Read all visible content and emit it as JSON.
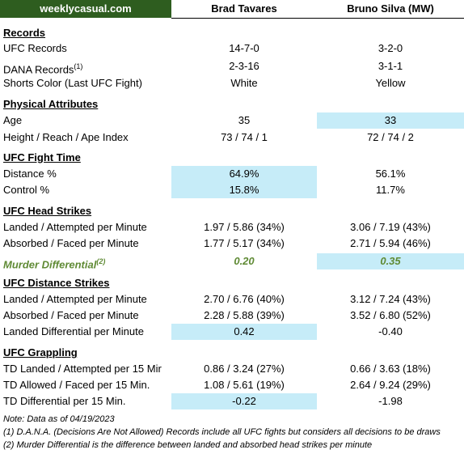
{
  "header": {
    "brand": "weeklycasual.com",
    "fighter1": "Brad Tavares",
    "fighter2": "Bruno Silva (MW)"
  },
  "records": {
    "title": "Records",
    "ufc_label": "UFC Records",
    "ufc_1": "14-7-0",
    "ufc_2": "3-2-0",
    "dana_label": "DANA Records",
    "dana_sup": "(1)",
    "dana_1": "2-3-16",
    "dana_2": "3-1-1",
    "shorts_label": "Shorts Color (Last UFC Fight)",
    "shorts_1": "White",
    "shorts_2": "Yellow"
  },
  "physical": {
    "title": "Physical Attributes",
    "age_label": "Age",
    "age_1": "35",
    "age_2": "33",
    "hra_label": "Height / Reach / Ape Index",
    "hra_1": "73 / 74 / 1",
    "hra_2": "72 / 74 / 2"
  },
  "fight_time": {
    "title": "UFC Fight Time",
    "distance_label": "Distance %",
    "distance_1": "64.9%",
    "distance_2": "56.1%",
    "control_label": "Control %",
    "control_1": "15.8%",
    "control_2": "11.7%"
  },
  "head": {
    "title": "UFC Head Strikes",
    "landed_label": "Landed / Attempted per Minute",
    "landed_1": "1.97 / 5.86 (34%)",
    "landed_2": "3.06 / 7.19 (43%)",
    "absorbed_label": "Absorbed / Faced per Minute",
    "absorbed_1": "1.77 / 5.17 (34%)",
    "absorbed_2": "2.71 / 5.94 (46%)",
    "murder_label": "Murder Differential",
    "murder_sup": "(2)",
    "murder_1": "0.20",
    "murder_2": "0.35"
  },
  "distance": {
    "title": "UFC Distance Strikes",
    "landed_label": "Landed / Attempted per Minute",
    "landed_1": "2.70 / 6.76 (40%)",
    "landed_2": "3.12 / 7.24 (43%)",
    "absorbed_label": "Absorbed / Faced per Minute",
    "absorbed_1": "2.28 / 5.88 (39%)",
    "absorbed_2": "3.52 / 6.80 (52%)",
    "diff_label": "Landed Differential per Minute",
    "diff_1": "0.42",
    "diff_2": "-0.40"
  },
  "grappling": {
    "title": "UFC Grappling",
    "td_label": "TD Landed / Attempted per 15 Mir",
    "td_1": "0.86 / 3.24 (27%)",
    "td_2": "0.66 / 3.63 (18%)",
    "tda_label": "TD Allowed / Faced per 15 Min.",
    "tda_1": "1.08 / 5.61 (19%)",
    "tda_2": "2.64 / 9.24 (29%)",
    "tdd_label": "TD Differential per 15 Min.",
    "tdd_1": "-0.22",
    "tdd_2": "-1.98"
  },
  "notes": {
    "n0": "Note: Data as of 04/19/2023",
    "n1": "(1) D.A.N.A. (Decisions Are Not Allowed) Records include all UFC fights but considers all decisions to be draws",
    "n2": "(2) Murder Differential is the difference between landed and absorbed head strikes per minute"
  },
  "colors": {
    "brand_bg": "#2e5d1f",
    "highlight": "#c6ecf8",
    "murder": "#5f8a34"
  }
}
